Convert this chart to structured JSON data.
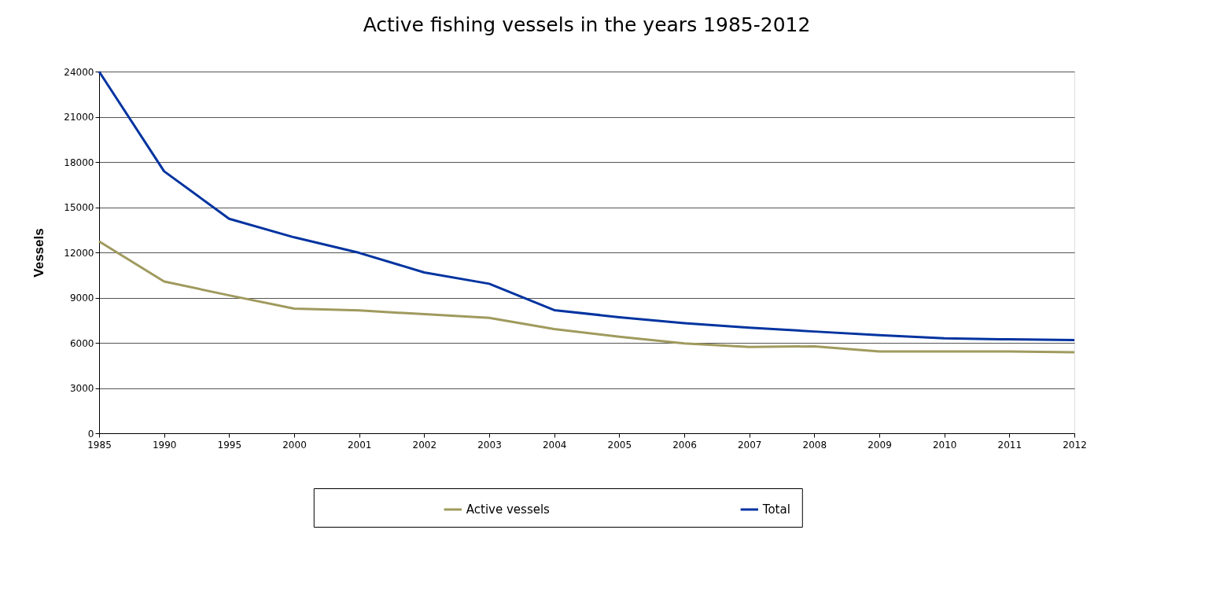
{
  "chart_data": {
    "type": "line",
    "title": "Active fishing vessels in the years 1985-2012",
    "ylabel": "Vessels",
    "categories": [
      "1985",
      "1990",
      "1995",
      "2000",
      "2001",
      "2002",
      "2003",
      "2004",
      "2005",
      "2006",
      "2007",
      "2008",
      "2009",
      "2010",
      "2011",
      "2012"
    ],
    "series": [
      {
        "name": "Active vessels",
        "color": "#a09a5e",
        "values": [
          12730,
          10070,
          9150,
          8270,
          8150,
          7900,
          7660,
          6910,
          6400,
          5960,
          5720,
          5770,
          5420,
          5430,
          5420,
          5380
        ]
      },
      {
        "name": "Total",
        "color": "#0033a0",
        "values": [
          24000,
          17380,
          14230,
          13000,
          11970,
          10670,
          9920,
          8170,
          7700,
          7310,
          7000,
          6750,
          6510,
          6300,
          6230,
          6180
        ]
      }
    ],
    "ylim": [
      0,
      24000
    ],
    "yticks": [
      0,
      3000,
      6000,
      9000,
      12000,
      15000,
      18000,
      21000,
      24000
    ],
    "grid": "y",
    "legend": "bottom",
    "marker": "none",
    "line_style": "solid"
  }
}
